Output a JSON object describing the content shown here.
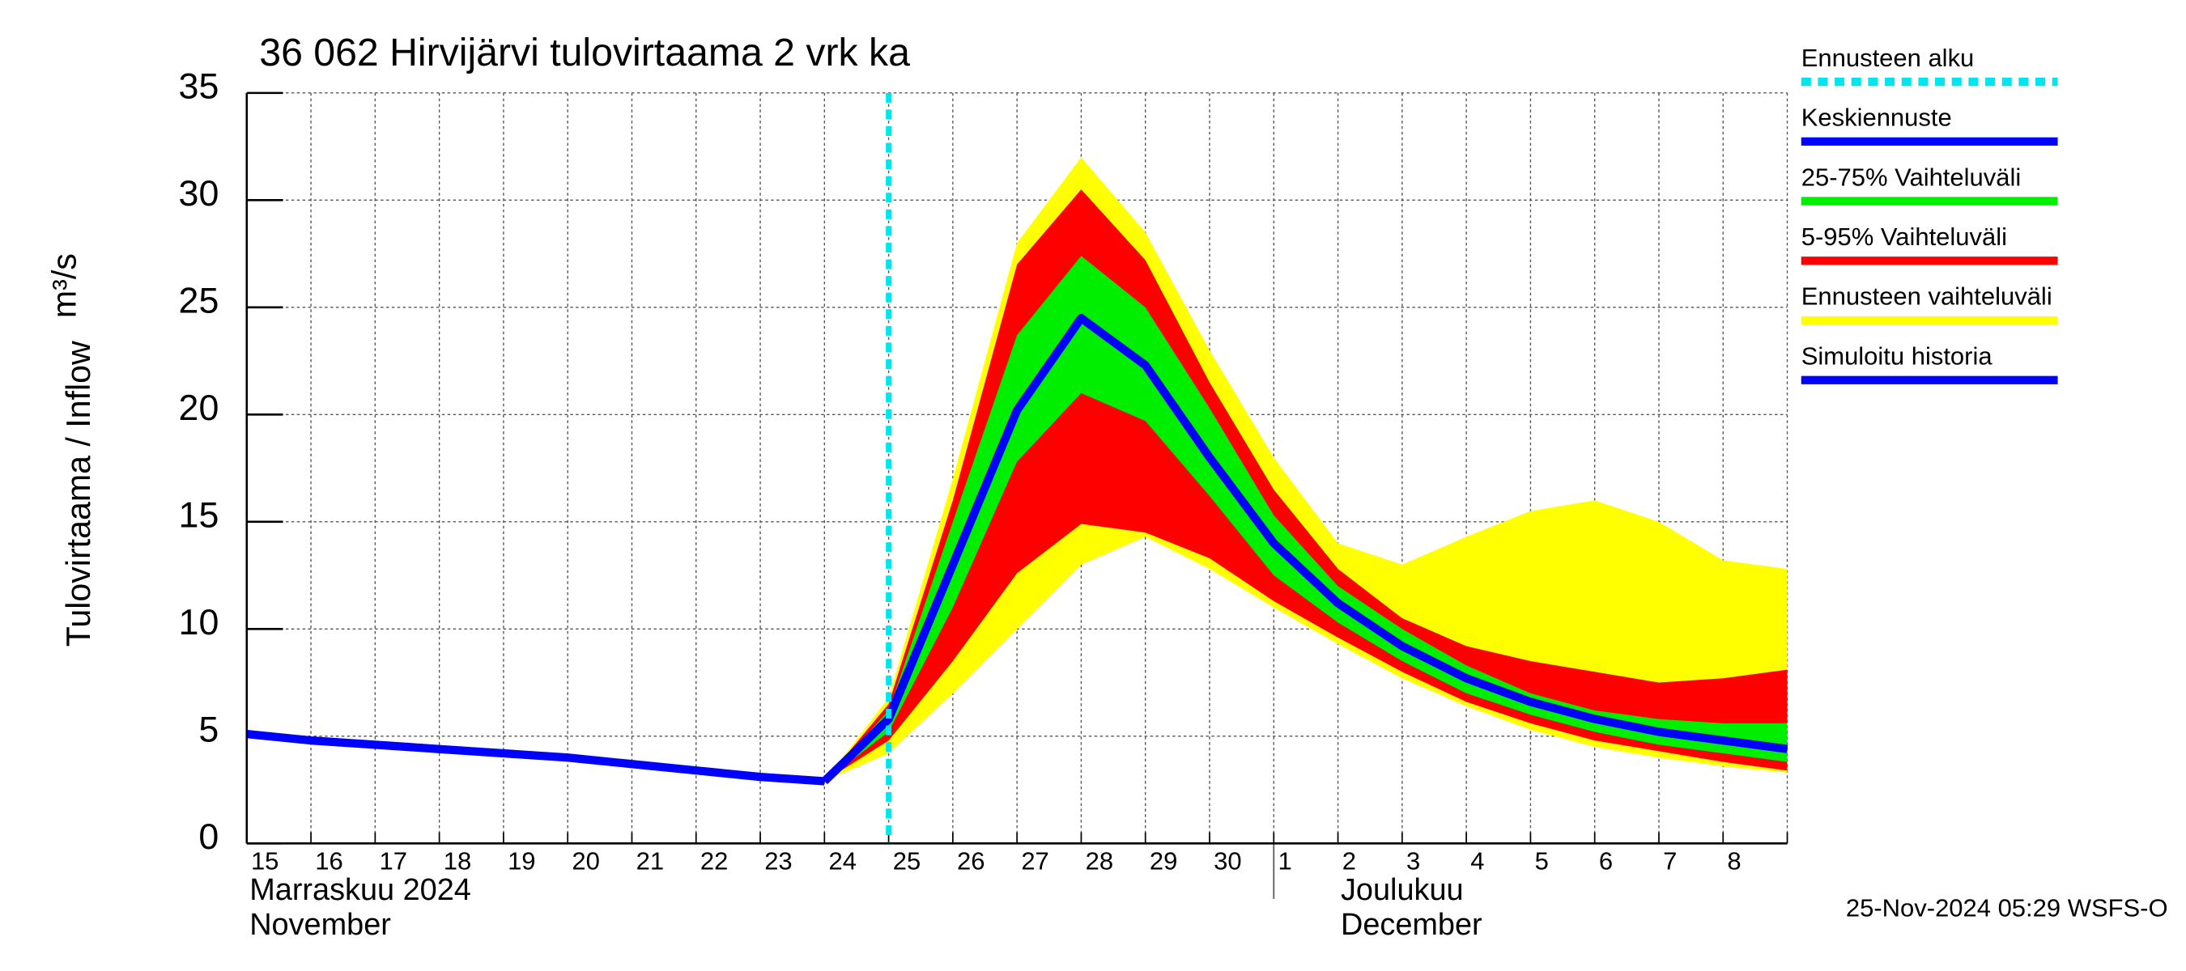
{
  "chart_data": {
    "type": "line",
    "title": "36 062 Hirvijärvi tulovirtaama 2 vrk ka",
    "y_label": "Tulovirtaama / Inflow",
    "y_unit": "m³/s",
    "categories": [
      "15",
      "16",
      "17",
      "18",
      "19",
      "20",
      "21",
      "22",
      "23",
      "24",
      "25",
      "26",
      "27",
      "28",
      "29",
      "30",
      "1",
      "2",
      "3",
      "4",
      "5",
      "6",
      "7",
      "8",
      null
    ],
    "month_labels": [
      {
        "index": 0,
        "lines": [
          "Marraskuu 2024",
          "November"
        ]
      },
      {
        "index": 16,
        "lines": [
          "Joulukuu",
          "December"
        ]
      }
    ],
    "ylim": [
      0,
      35
    ],
    "yticks": [
      0,
      5,
      10,
      15,
      20,
      25,
      30,
      35
    ],
    "grid": true,
    "forecast_start": {
      "name": "Ennusteen alku",
      "color": "#00e5ee",
      "index": 10
    },
    "bands": [
      {
        "name": "Ennusteen vaihteluväli",
        "color": "#ffff00",
        "upper": [
          null,
          null,
          null,
          null,
          null,
          null,
          null,
          null,
          null,
          2.9,
          6.8,
          17,
          28,
          32,
          28.5,
          23,
          18,
          14,
          13,
          14.3,
          15.5,
          16,
          15,
          13.2,
          12.8
        ],
        "lower": [
          null,
          null,
          null,
          null,
          null,
          null,
          null,
          null,
          null,
          2.9,
          4.2,
          7,
          10,
          13,
          14.3,
          12.8,
          11,
          9.3,
          7.7,
          6.4,
          5.3,
          4.5,
          4,
          3.6,
          3.3
        ]
      },
      {
        "name": "5-95% Vaihteluväli",
        "color": "#ff0000",
        "upper": [
          null,
          null,
          null,
          null,
          null,
          null,
          null,
          null,
          null,
          2.9,
          6.5,
          16,
          27,
          30.5,
          27.2,
          21.5,
          16.5,
          12.8,
          10.5,
          9.2,
          8.5,
          8,
          7.5,
          7.7,
          8.1
        ],
        "lower": [
          null,
          null,
          null,
          null,
          null,
          null,
          null,
          null,
          null,
          2.9,
          4.8,
          8.5,
          12.6,
          14.9,
          14.5,
          13.3,
          11.3,
          9.6,
          8,
          6.6,
          5.6,
          4.8,
          4.3,
          3.8,
          3.4
        ]
      },
      {
        "name": "25-75% Vaihteluväli",
        "color": "#00ee00",
        "upper": [
          null,
          null,
          null,
          null,
          null,
          null,
          null,
          null,
          null,
          2.9,
          6.2,
          15,
          23.7,
          27.4,
          25,
          20.3,
          15.3,
          12,
          10,
          8.3,
          7,
          6.2,
          5.8,
          5.6,
          5.6
        ],
        "lower": [
          null,
          null,
          null,
          null,
          null,
          null,
          null,
          null,
          null,
          2.9,
          5.2,
          11,
          17.8,
          21,
          19.7,
          16.2,
          12.5,
          10.3,
          8.5,
          7,
          6,
          5.2,
          4.6,
          4.2,
          3.8
        ]
      }
    ],
    "series": [
      {
        "name": "Simuloitu historia",
        "color": "#0000ff",
        "values": [
          5.1,
          4.8,
          4.6,
          4.4,
          4.2,
          4.0,
          3.7,
          3.4,
          3.1,
          2.9,
          null,
          null,
          null,
          null,
          null,
          null,
          null,
          null,
          null,
          null,
          null,
          null,
          null,
          null,
          null
        ]
      },
      {
        "name": "Keskiennuste",
        "color": "#0000ff",
        "values": [
          null,
          null,
          null,
          null,
          null,
          null,
          null,
          null,
          null,
          2.9,
          5.8,
          13,
          20.2,
          24.5,
          22.3,
          18,
          14,
          11.2,
          9.2,
          7.7,
          6.6,
          5.8,
          5.2,
          4.8,
          4.4
        ]
      }
    ],
    "footer": "25-Nov-2024 05:29 WSFS-O"
  }
}
